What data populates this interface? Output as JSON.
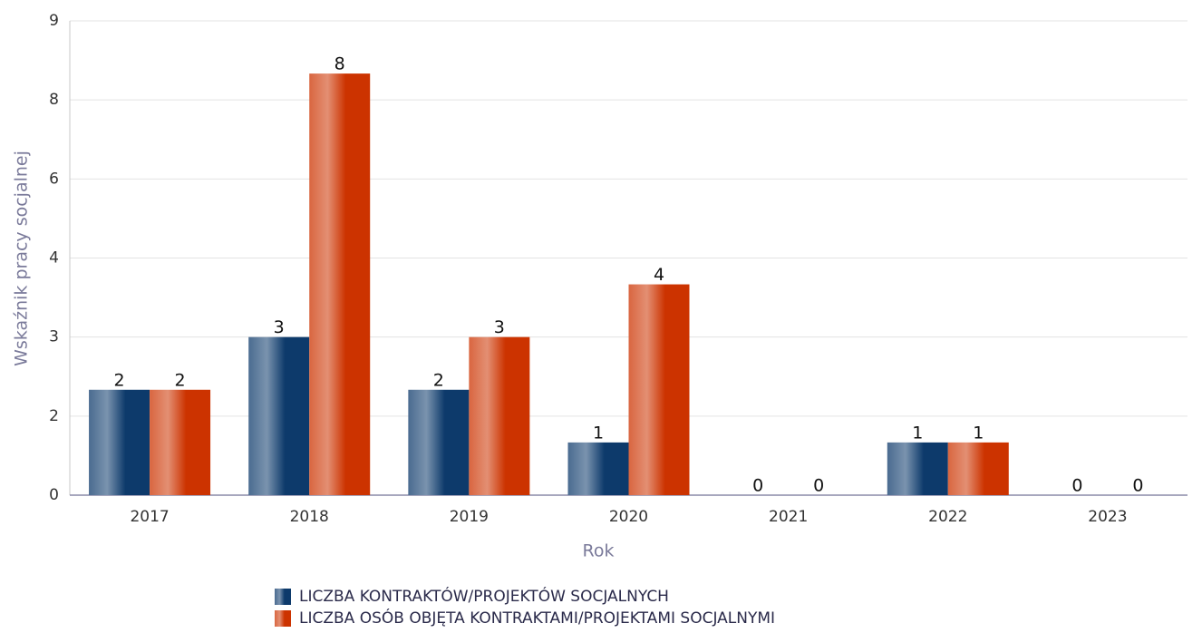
{
  "chart_data": {
    "type": "bar",
    "categories": [
      "2017",
      "2018",
      "2019",
      "2020",
      "2021",
      "2022",
      "2023"
    ],
    "series": [
      {
        "name": "LICZBA KONTRAKTÓW/PROJEKTÓW SOCJALNYCH",
        "color": "#0d3a6b",
        "values": [
          2,
          3,
          2,
          1,
          0,
          1,
          0
        ]
      },
      {
        "name": "LICZBA OSÓB OBJĘTA KONTRAKTAMI/PROJEKTAMI SOCJALNYMI",
        "color": "#cc3300",
        "values": [
          2,
          8,
          3,
          4,
          0,
          1,
          0
        ]
      }
    ],
    "ylim": [
      0,
      9
    ],
    "yticks": [
      0,
      {
        "value": 1.5,
        "label": "2"
      },
      3,
      {
        "value": 4.5,
        "label": "4"
      },
      6,
      {
        "value": 7.5,
        "label": "8"
      },
      9
    ],
    "xlabel": "Rok",
    "ylabel": "Wskaźnik pracy socjalnej",
    "grid": true,
    "legend": "bottom"
  }
}
